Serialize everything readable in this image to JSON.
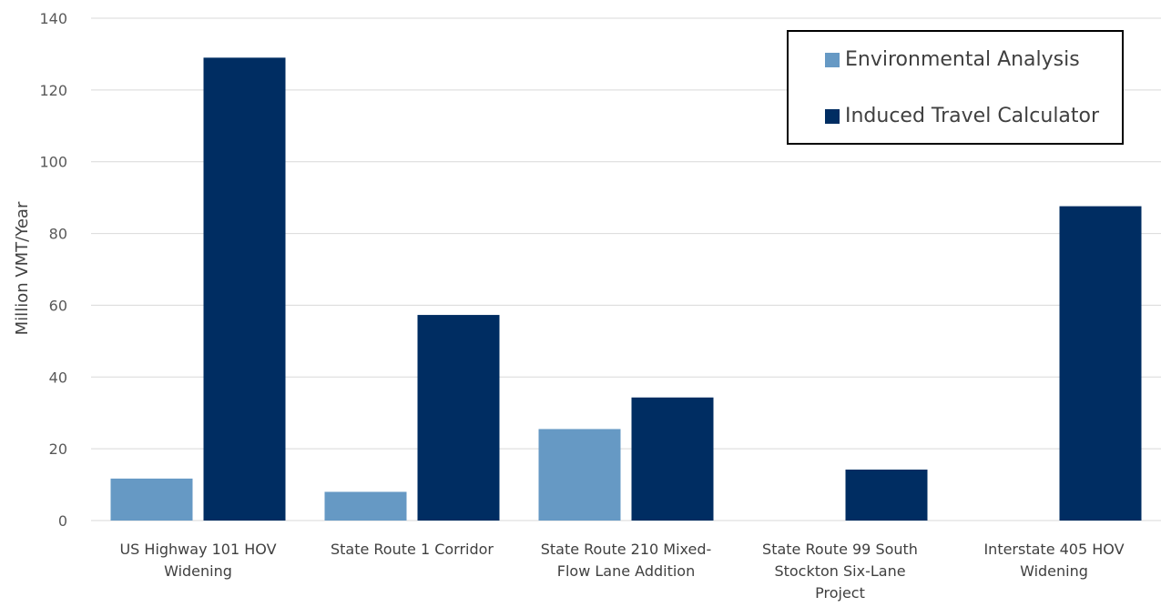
{
  "chart_data": {
    "type": "bar",
    "title": "",
    "xlabel": "",
    "ylabel": "Million VMT/Year",
    "ylim": [
      0,
      140
    ],
    "yticks": [
      0,
      20,
      40,
      60,
      80,
      100,
      120,
      140
    ],
    "grid": true,
    "legend_position": "top-right",
    "categories": [
      [
        "US Highway 101 HOV",
        "Widening"
      ],
      [
        "State Route 1 Corridor"
      ],
      [
        "State Route 210 Mixed-",
        "Flow Lane Addition"
      ],
      [
        "State Route 99 South",
        "Stockton Six-Lane",
        "Project"
      ],
      [
        "Interstate 405 HOV",
        "Widening"
      ]
    ],
    "series": [
      {
        "name": "Environmental Analysis",
        "color": "#6699c4",
        "values": [
          11.7,
          8.0,
          25.5,
          null,
          null
        ]
      },
      {
        "name": "Induced Travel Calculator",
        "color": "#002d62",
        "values": [
          129,
          57.3,
          34.3,
          14.2,
          87.6
        ]
      }
    ]
  }
}
